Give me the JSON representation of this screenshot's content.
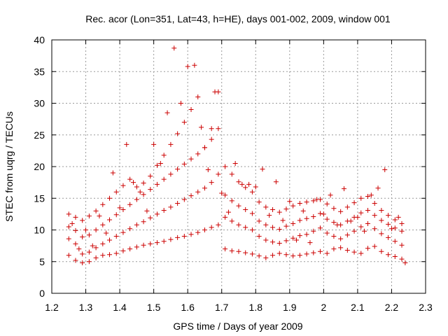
{
  "chart_data": {
    "type": "scatter",
    "title": "Rec. acor (Lon=351, Lat=43, h=HE), days 001-002, 2009, window 001",
    "xlabel": "GPS time / Days of year 2009",
    "ylabel": "STEC from uqrg / TECUs",
    "xlim": [
      1.2,
      2.3
    ],
    "ylim": [
      0,
      40
    ],
    "xticks": [
      "1.2",
      "1.3",
      "1.4",
      "1.5",
      "1.6",
      "1.7",
      "1.8",
      "1.9",
      "2",
      "2.1",
      "2.2",
      "2.3"
    ],
    "yticks": [
      "0",
      "5",
      "10",
      "15",
      "20",
      "25",
      "30",
      "35",
      "40"
    ],
    "grid": true,
    "marker": "+",
    "color": "#cc0000",
    "series": [
      {
        "x": [
          1.25,
          1.27,
          1.29,
          1.31,
          1.33,
          1.35,
          1.37,
          1.39,
          1.41,
          1.43,
          1.45,
          1.47,
          1.49,
          1.51,
          1.53,
          1.55,
          1.57,
          1.59,
          1.61,
          1.63,
          1.65,
          1.67,
          1.69,
          1.71,
          1.73,
          1.75,
          1.77,
          1.79,
          1.81,
          1.83,
          1.85,
          1.87,
          1.89,
          1.91,
          1.93,
          1.95,
          1.97,
          1.99,
          2.01,
          2.03,
          2.05,
          2.07,
          2.09,
          2.11,
          2.13,
          2.15,
          2.17,
          2.19,
          2.21,
          2.23
        ],
        "y": [
          6.0,
          5.2,
          4.8,
          5.0,
          5.6,
          6.0,
          6.1,
          6.3,
          6.7,
          7.0,
          7.3,
          7.6,
          7.8,
          8.0,
          8.2,
          8.5,
          8.8,
          9.0,
          9.3,
          9.6,
          10.0,
          10.4,
          10.8,
          7.0,
          6.7,
          6.6,
          6.4,
          6.2,
          5.9,
          5.6,
          6.0,
          6.3,
          6.1,
          5.9,
          6.0,
          6.2,
          6.4,
          6.6,
          6.3,
          7.0,
          7.2,
          6.8,
          6.5,
          6.3,
          7.1,
          7.4,
          6.6,
          6.1,
          5.8,
          5.4
        ]
      },
      {
        "x": [
          1.25,
          1.27,
          1.29,
          1.31,
          1.33,
          1.35,
          1.37,
          1.39,
          1.41,
          1.43,
          1.45,
          1.47,
          1.49,
          1.51,
          1.53,
          1.55,
          1.57,
          1.59,
          1.61,
          1.63,
          1.65,
          1.67,
          1.69,
          1.71,
          1.73,
          1.75,
          1.77,
          1.79,
          1.81,
          1.83,
          1.85,
          1.87,
          1.89,
          1.91,
          1.93,
          1.95,
          1.97,
          1.99,
          2.01,
          2.03,
          2.05,
          2.07,
          2.09,
          2.11,
          2.13,
          2.15,
          2.17,
          2.19,
          2.21,
          2.23
        ],
        "y": [
          8.6,
          7.8,
          6.2,
          6.5,
          7.2,
          7.8,
          8.4,
          9.0,
          9.6,
          10.2,
          10.8,
          11.3,
          11.9,
          12.5,
          13.1,
          13.6,
          14.2,
          14.8,
          15.4,
          16.0,
          16.6,
          17.5,
          18.8,
          12.0,
          11.4,
          10.8,
          10.4,
          10.0,
          9.0,
          8.4,
          8.1,
          7.9,
          8.3,
          8.7,
          9.1,
          9.3,
          9.8,
          10.3,
          9.5,
          9.0,
          8.6,
          9.2,
          9.8,
          10.5,
          11.0,
          10.2,
          9.4,
          8.8,
          8.2,
          7.6
        ]
      },
      {
        "x": [
          1.25,
          1.27,
          1.29,
          1.31,
          1.33,
          1.35,
          1.37,
          1.39,
          1.41,
          1.43,
          1.45,
          1.47,
          1.49,
          1.51,
          1.53,
          1.55,
          1.57,
          1.59,
          1.61,
          1.63,
          1.65,
          1.67,
          1.69,
          1.71,
          1.73,
          1.75,
          1.77,
          1.79,
          1.81,
          1.83,
          1.85,
          1.87,
          1.89,
          1.91,
          1.93,
          1.95,
          1.97,
          1.99,
          2.01,
          2.03,
          2.05,
          2.07,
          2.09,
          2.11,
          2.13,
          2.15,
          2.17,
          2.19,
          2.21,
          2.23
        ],
        "y": [
          10.5,
          9.9,
          8.9,
          9.2,
          10.0,
          10.8,
          11.6,
          12.4,
          13.2,
          14.0,
          14.8,
          15.6,
          16.4,
          17.2,
          18.0,
          18.8,
          19.6,
          20.4,
          21.2,
          22.0,
          23.0,
          24.3,
          26.0,
          15.5,
          14.6,
          13.8,
          13.2,
          12.6,
          11.4,
          10.8,
          10.4,
          10.1,
          10.6,
          11.0,
          11.5,
          11.8,
          12.1,
          12.6,
          11.7,
          11.2,
          10.8,
          11.4,
          12.0,
          12.7,
          13.1,
          12.3,
          11.5,
          10.9,
          10.3,
          9.8
        ]
      },
      {
        "x": [
          1.25,
          1.27,
          1.29,
          1.31,
          1.33,
          1.35,
          1.37,
          1.39,
          1.41,
          1.43,
          1.45,
          1.47,
          1.49,
          1.51,
          1.53,
          1.55,
          1.57,
          1.59,
          1.61,
          1.63,
          1.65,
          1.67,
          1.69,
          1.71,
          1.73,
          1.75,
          1.77,
          1.79,
          1.81,
          1.83,
          1.85,
          1.87,
          1.89,
          1.91,
          1.93,
          1.95,
          1.97,
          1.99,
          2.01,
          2.03,
          2.05,
          2.07,
          2.09,
          2.11,
          2.13,
          2.15,
          2.17,
          2.19,
          2.21,
          2.23
        ],
        "y": [
          12.5,
          12.0,
          11.5,
          12.2,
          13.0,
          14.0,
          15.0,
          16.0,
          17.0,
          18.0,
          16.8,
          17.4,
          18.5,
          20.2,
          21.8,
          23.5,
          25.2,
          27.0,
          29.0,
          31.0,
          23.0,
          26.0,
          31.8,
          20.0,
          18.8,
          17.6,
          16.7,
          16.0,
          14.4,
          13.6,
          13.2,
          12.8,
          13.3,
          13.8,
          14.2,
          14.4,
          14.6,
          14.8,
          14.1,
          13.4,
          12.9,
          13.6,
          14.3,
          15.0,
          15.3,
          14.2,
          13.1,
          12.3,
          11.6,
          11.0
        ]
      },
      {
        "x": [
          1.26,
          1.3,
          1.34,
          1.38,
          1.42,
          1.46,
          1.5,
          1.54,
          1.58,
          1.62,
          1.66,
          1.7,
          1.74,
          1.78,
          1.82,
          1.86,
          1.9,
          1.94,
          1.98,
          2.02,
          2.06,
          2.1,
          2.14,
          2.18,
          2.22
        ],
        "y": [
          11.0,
          10.0,
          12.2,
          19.0,
          23.5,
          16.0,
          23.5,
          28.5,
          30.0,
          36.0,
          19.5,
          15.8,
          20.5,
          17.2,
          19.6,
          17.6,
          14.5,
          13.0,
          14.8,
          15.5,
          16.5,
          12.0,
          15.5,
          19.5,
          12.0
        ]
      },
      {
        "x": [
          1.28,
          1.32,
          1.36,
          1.4,
          1.44,
          1.48,
          1.52,
          1.56,
          1.6,
          1.64,
          1.68,
          1.72,
          1.76,
          1.8,
          1.84,
          1.88,
          1.92,
          1.96,
          2.0,
          2.04,
          2.08,
          2.12,
          2.16,
          2.2,
          2.24
        ],
        "y": [
          7.0,
          7.5,
          9.5,
          13.5,
          17.5,
          13.0,
          20.5,
          38.7,
          35.8,
          26.2,
          31.8,
          12.8,
          17.2,
          16.8,
          12.3,
          11.5,
          8.4,
          8.0,
          12.5,
          10.8,
          11.4,
          9.8,
          16.6,
          10.2,
          4.8
        ]
      }
    ]
  }
}
